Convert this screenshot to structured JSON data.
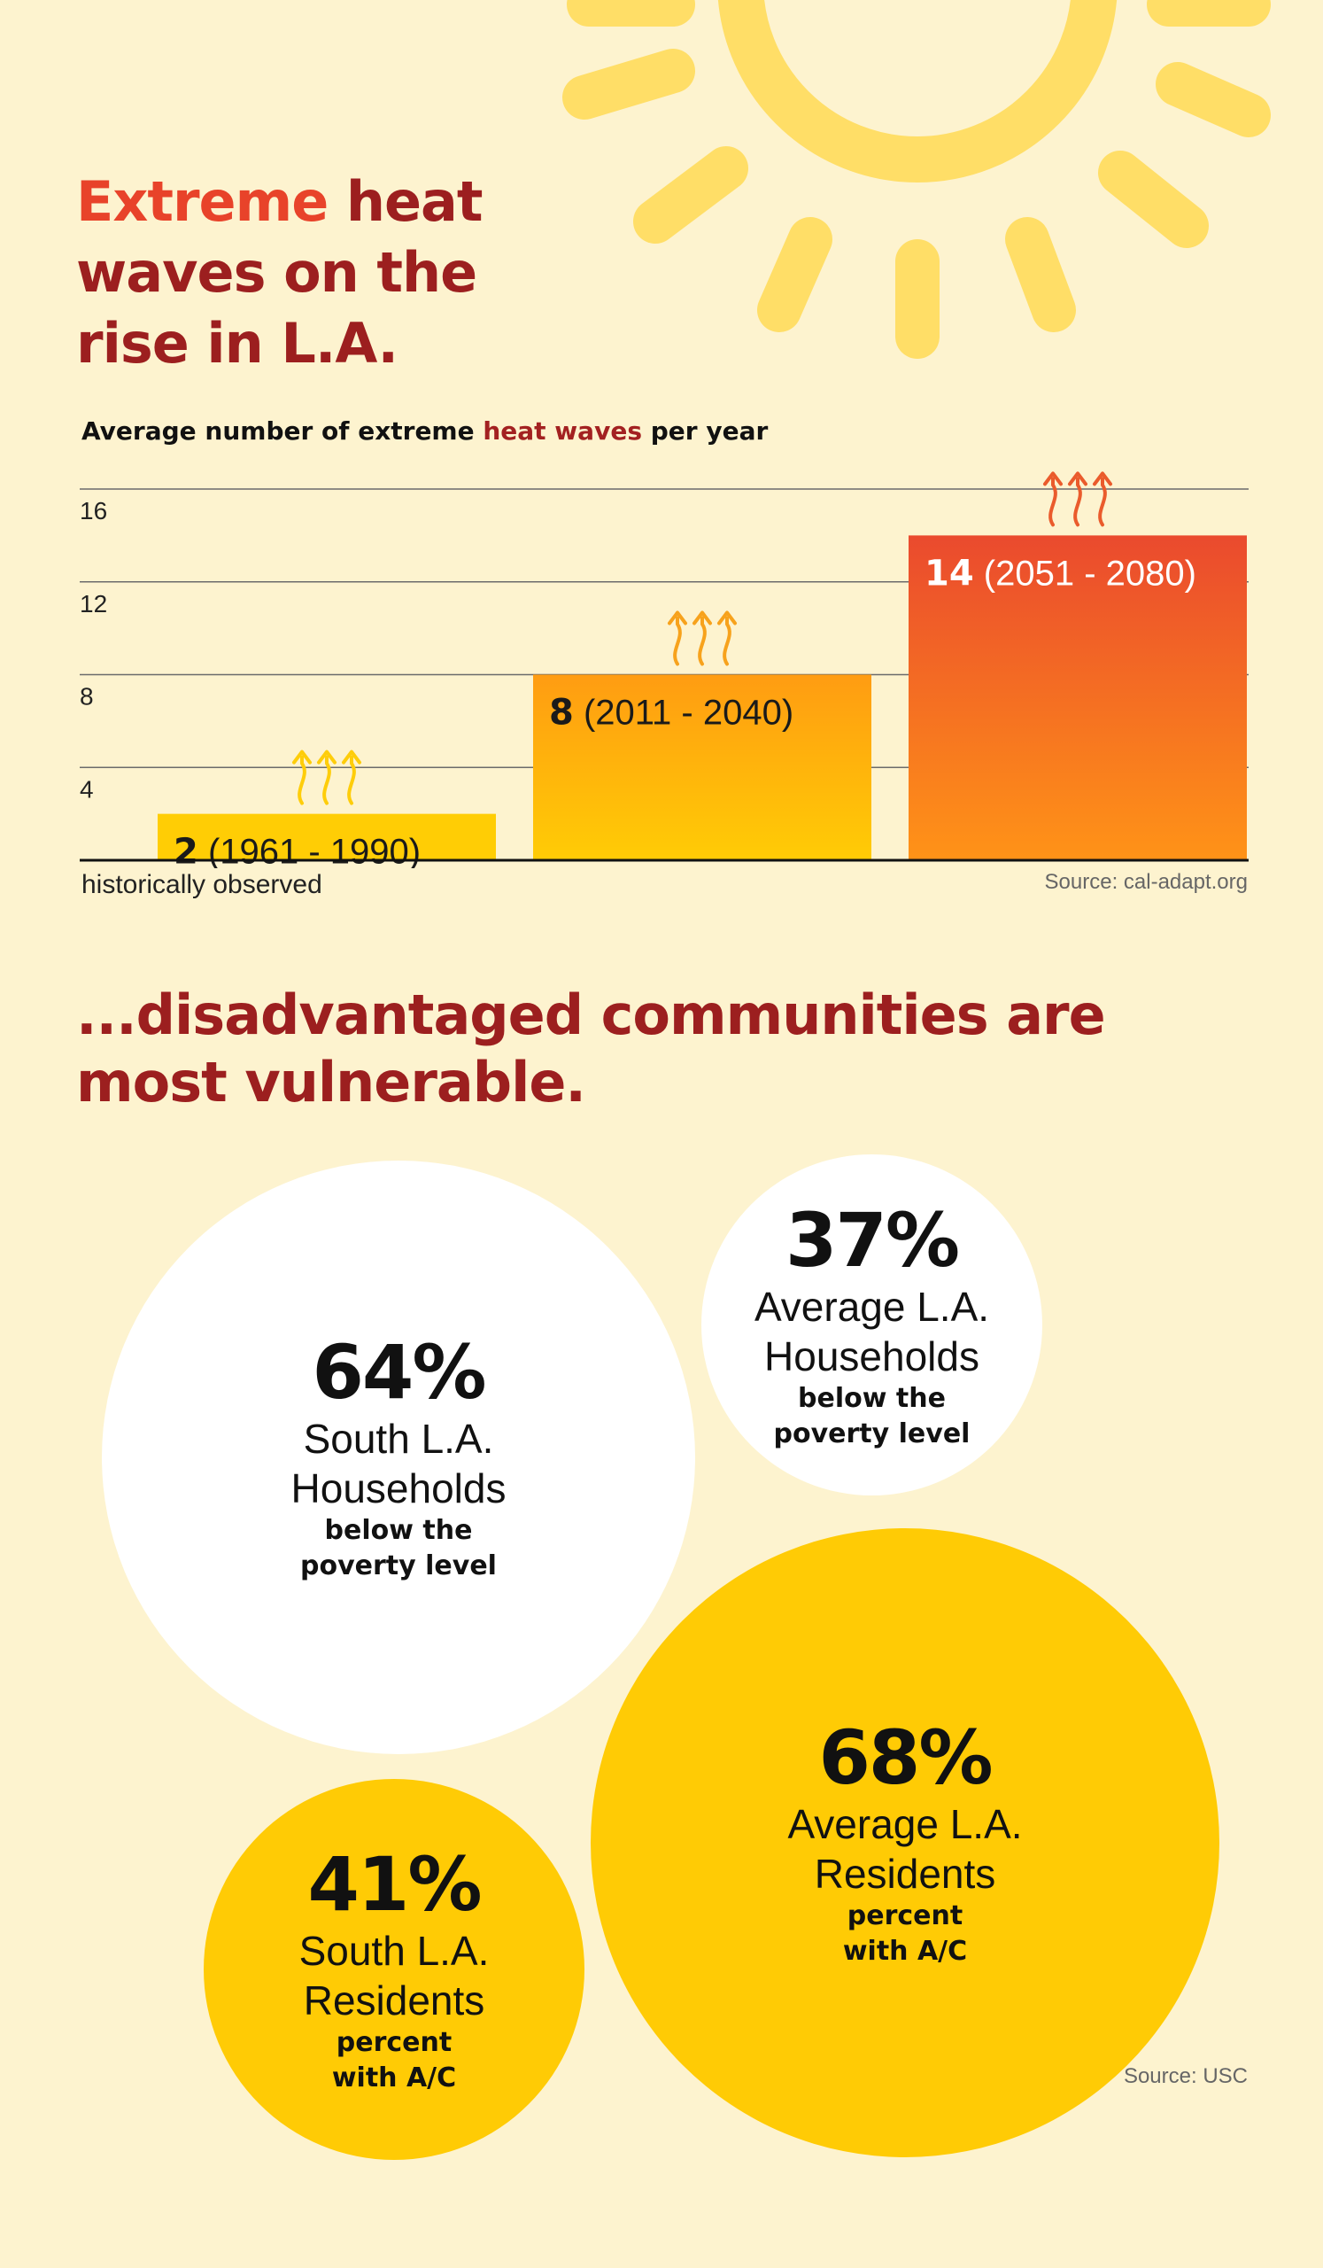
{
  "title": {
    "accent": "Extreme",
    "rest": " heat waves on the rise in L.A."
  },
  "chart_title": {
    "pre": "Average number of extreme ",
    "highlight": "heat waves",
    "post": " per year"
  },
  "chart_data": {
    "type": "bar",
    "categories": [
      "1961 - 1990",
      "2011 - 2040",
      "2051 - 2080"
    ],
    "values": [
      2,
      8,
      14
    ],
    "bar_labels": [
      {
        "value": "2",
        "period": " (1961 - 1990)"
      },
      {
        "value": "8",
        "period": " (2011 - 2040)"
      },
      {
        "value": "14",
        "period": " (2051 - 2080)"
      }
    ],
    "yticks": [
      4,
      8,
      12,
      16
    ],
    "ylim": [
      0,
      16
    ],
    "grid": true,
    "colors": {
      "bar1": "#ffcd05",
      "bar2_top": "#ff9c12",
      "bar2_bottom": "#ffcc05",
      "bar3_top": "#ea4a2e",
      "bar3_bottom": "#ff9317",
      "arrows": [
        "#fecd0a",
        "#f7a21c",
        "#ea5b2c"
      ]
    },
    "annotations": [
      "historically observed",
      "Source: cal-adapt.org"
    ]
  },
  "notes": {
    "left": "historically observed",
    "source": "Source: cal-adapt.org"
  },
  "subtitle": "...disadvantaged communities are most vulnerable.",
  "circles": [
    {
      "pct": "64%",
      "label": "South L.A. Households",
      "sub": "below the poverty level"
    },
    {
      "pct": "37%",
      "label": "Average L.A. Households",
      "sub": "below the poverty level"
    },
    {
      "pct": "68%",
      "label": "Average L.A. Residents",
      "sub": "percent with A/C"
    },
    {
      "pct": "41%",
      "label": "South L.A. Residents",
      "sub": "percent with A/C"
    }
  ],
  "source_usc": "Source: USC",
  "colors": {
    "background": "#fdf3cf",
    "title_red": "#9c1f1f",
    "accent_red": "#e8432a",
    "sun": "#ffde67",
    "yellow": "#ffcb05"
  }
}
